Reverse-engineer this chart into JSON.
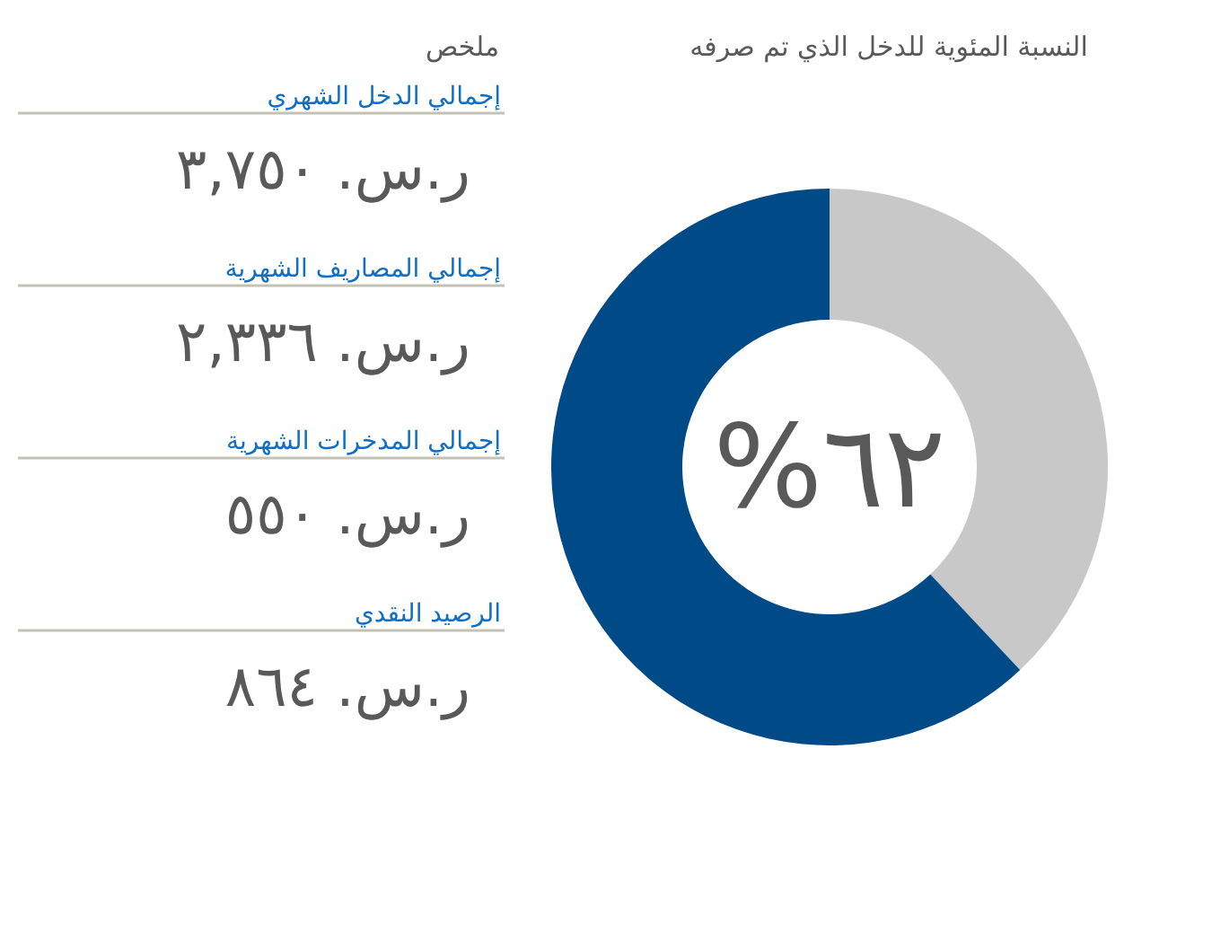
{
  "chart_data": [
    {
      "type": "donut",
      "title": "النسبة المئوية للدخل الذي تم صرفه",
      "categories": [
        null,
        null
      ],
      "values": [
        38,
        62
      ],
      "colors": [
        "#c8c8c8",
        "#004a87"
      ],
      "annotations": [
        "%٦٢"
      ]
    },
    {
      "type": "other",
      "title": "ملخص",
      "annotations": [
        "إجمالي الدخل الشهري",
        "ر.س. ٣,٧٥٠",
        "إجمالي المصاريف الشهرية",
        "ر.س. ٢,٣٣٦",
        "إجمالي المدخرات الشهرية",
        "ر.س. ٥٥٠",
        "الرصيد النقدي",
        "ر.س. ٨٦٤"
      ]
    }
  ]
}
